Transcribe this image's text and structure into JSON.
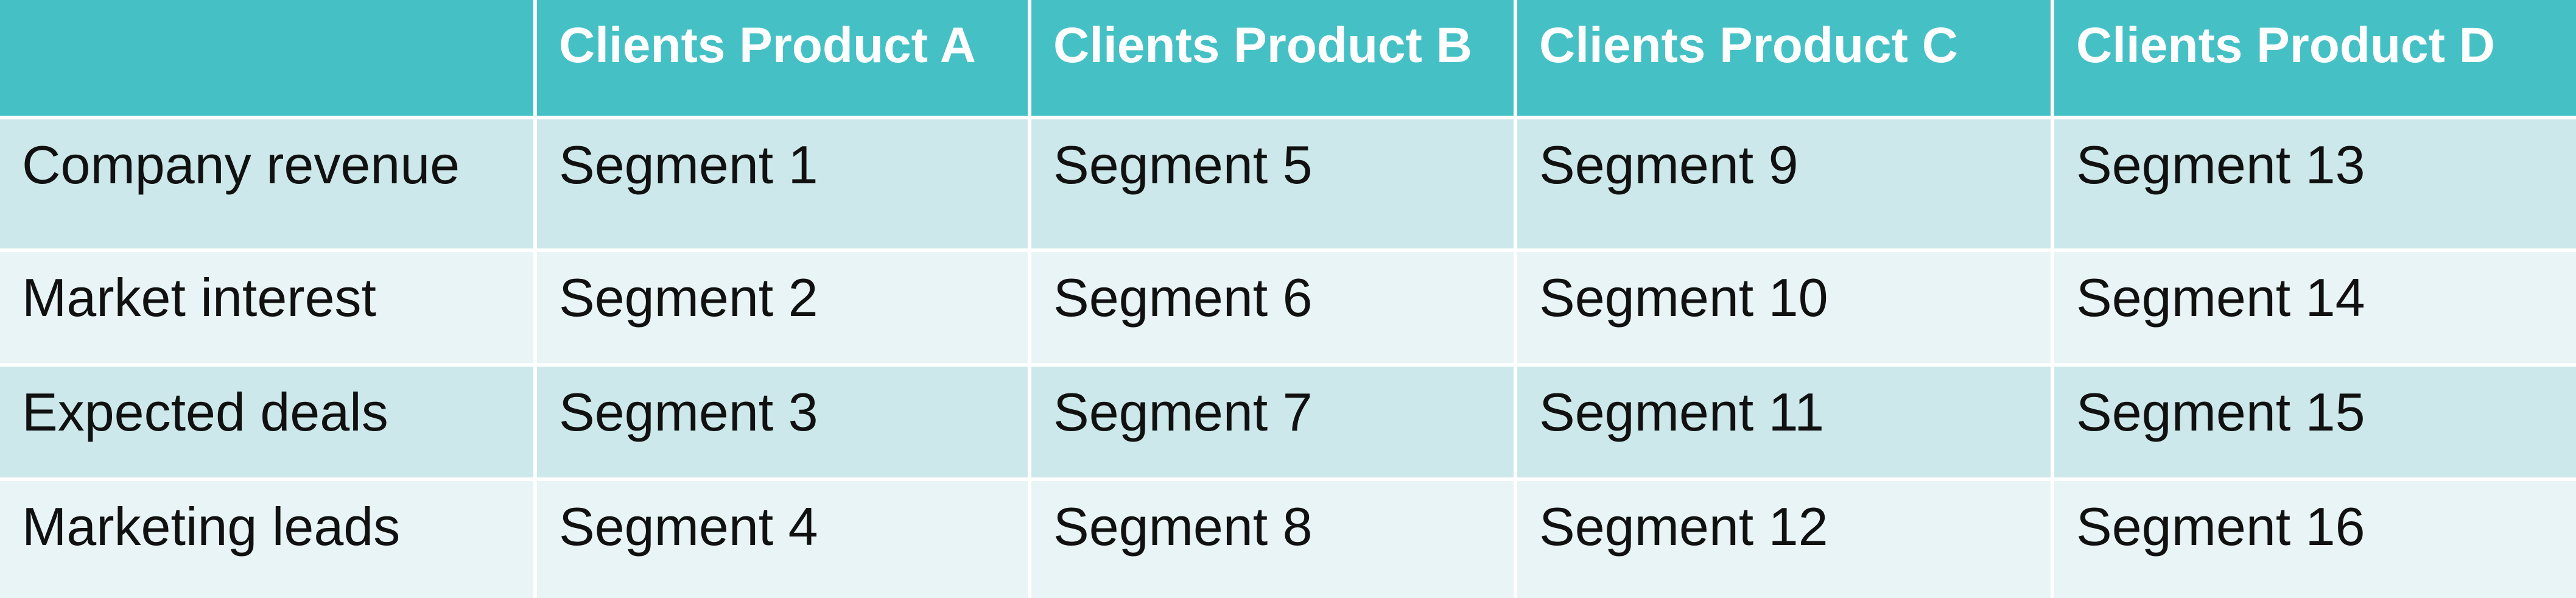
{
  "colors": {
    "header_bg": "#45c1c6",
    "header_text": "#ffffff",
    "row_dark": "#cde8ea",
    "row_light": "#e8f4f5",
    "body_text": "#111111"
  },
  "table": {
    "corner": "",
    "columns": [
      "Clients Product A",
      "Clients Product B",
      "Clients Product C",
      "Clients Product D"
    ],
    "rows": [
      {
        "label": "Company revenue",
        "cells": [
          "Segment 1",
          "Segment 5",
          "Segment 9",
          "Segment 13"
        ]
      },
      {
        "label": "Market interest",
        "cells": [
          "Segment 2",
          "Segment 6",
          "Segment 10",
          "Segment 14"
        ]
      },
      {
        "label": "Expected deals",
        "cells": [
          "Segment 3",
          "Segment 7",
          "Segment 11",
          "Segment 15"
        ]
      },
      {
        "label": "Marketing leads",
        "cells": [
          "Segment 4",
          "Segment 8",
          "Segment 12",
          "Segment 16"
        ]
      }
    ]
  }
}
